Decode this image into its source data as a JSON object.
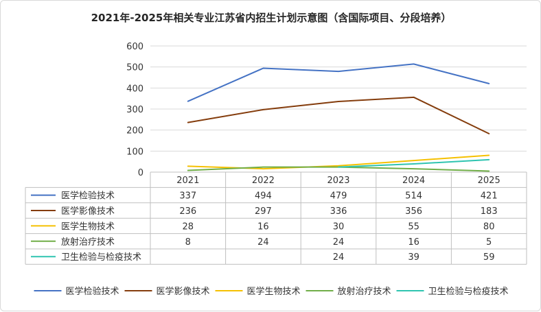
{
  "chart_data": {
    "type": "line",
    "title": "2021年-2025年相关专业江苏省内招生计划示意图（含国际项目、分段培养）",
    "categories": [
      "2021",
      "2022",
      "2023",
      "2024",
      "2025"
    ],
    "y_ticks": [
      "0",
      "100",
      "200",
      "300",
      "400",
      "500",
      "600"
    ],
    "ylim": [
      0,
      600
    ],
    "grid": "horizontal",
    "legend_position": "bottom",
    "series": [
      {
        "name": "医学检验技术",
        "color": "#4472c4",
        "values": [
          337,
          494,
          479,
          514,
          421
        ],
        "labels": [
          "337",
          "494",
          "479",
          "514",
          "421"
        ]
      },
      {
        "name": "医学影像技术",
        "color": "#843c0c",
        "values": [
          236,
          297,
          336,
          356,
          183
        ],
        "labels": [
          "236",
          "297",
          "336",
          "356",
          "183"
        ]
      },
      {
        "name": "医学生物技术",
        "color": "#f5c000",
        "values": [
          28,
          16,
          30,
          55,
          80
        ],
        "labels": [
          "28",
          "16",
          "30",
          "55",
          "80"
        ]
      },
      {
        "name": "放射治疗技术",
        "color": "#70ad47",
        "values": [
          8,
          24,
          24,
          16,
          5
        ],
        "labels": [
          "8",
          "24",
          "24",
          "16",
          "5"
        ]
      },
      {
        "name": "卫生检验与检疫技术",
        "color": "#2ec4b0",
        "values": [
          null,
          null,
          24,
          39,
          59
        ],
        "labels": [
          "",
          "",
          "24",
          "39",
          "59"
        ]
      }
    ]
  }
}
